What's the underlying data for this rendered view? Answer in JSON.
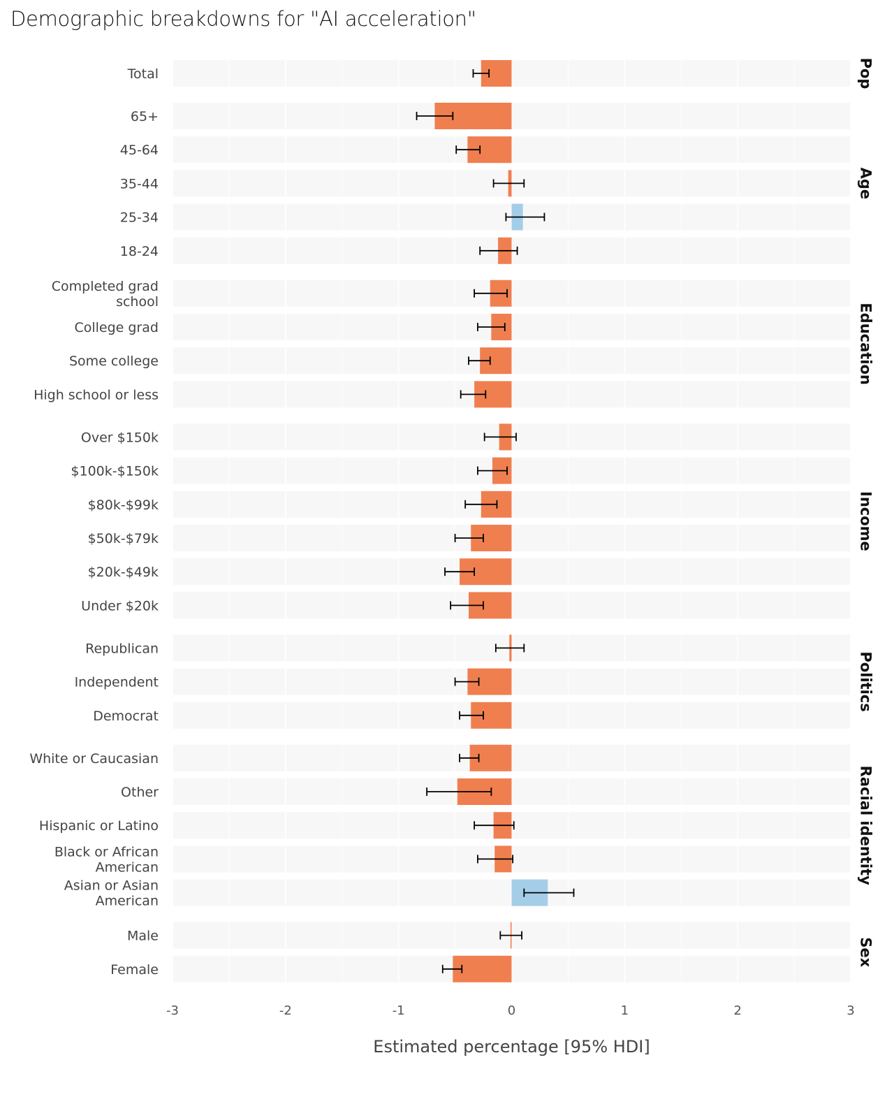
{
  "chart_data": {
    "type": "bar",
    "orientation": "horizontal",
    "title": "Demographic breakdowns for \"AI acceleration\"",
    "xlabel": "Estimated percentage [95% HDI]",
    "ylabel": "",
    "xlim": [
      -3,
      3
    ],
    "xticks": [
      "-3",
      "-2",
      "-1",
      "0",
      "1",
      "2",
      "3"
    ],
    "grid": true,
    "colors": {
      "negative": "#F07F4F",
      "positive": "#A4CEE8",
      "panel": "#F7F7F7",
      "grid": "#FFFFFF",
      "errorbar": "#000000"
    },
    "facets": [
      {
        "name": "Pop",
        "rows": [
          {
            "label": [
              "Total"
            ],
            "value": -0.27,
            "lo": -0.34,
            "hi": -0.2
          }
        ]
      },
      {
        "name": "Age",
        "rows": [
          {
            "label": [
              "65+"
            ],
            "value": -0.68,
            "lo": -0.84,
            "hi": -0.52
          },
          {
            "label": [
              "45-64"
            ],
            "value": -0.39,
            "lo": -0.49,
            "hi": -0.28
          },
          {
            "label": [
              "35-44"
            ],
            "value": -0.03,
            "lo": -0.16,
            "hi": 0.11
          },
          {
            "label": [
              "25-34"
            ],
            "value": 0.1,
            "lo": -0.05,
            "hi": 0.29
          },
          {
            "label": [
              "18-24"
            ],
            "value": -0.12,
            "lo": -0.28,
            "hi": 0.05
          }
        ]
      },
      {
        "name": "Education",
        "rows": [
          {
            "label": [
              "Completed grad",
              "school"
            ],
            "value": -0.19,
            "lo": -0.33,
            "hi": -0.04
          },
          {
            "label": [
              "College grad"
            ],
            "value": -0.18,
            "lo": -0.3,
            "hi": -0.06
          },
          {
            "label": [
              "Some college"
            ],
            "value": -0.28,
            "lo": -0.38,
            "hi": -0.19
          },
          {
            "label": [
              "High school or less"
            ],
            "value": -0.33,
            "lo": -0.45,
            "hi": -0.23
          }
        ]
      },
      {
        "name": "Income",
        "rows": [
          {
            "label": [
              "Over $150k"
            ],
            "value": -0.11,
            "lo": -0.24,
            "hi": 0.04
          },
          {
            "label": [
              "$100k-$150k"
            ],
            "value": -0.17,
            "lo": -0.3,
            "hi": -0.04
          },
          {
            "label": [
              "$80k-$99k"
            ],
            "value": -0.27,
            "lo": -0.41,
            "hi": -0.13
          },
          {
            "label": [
              "$50k-$79k"
            ],
            "value": -0.36,
            "lo": -0.5,
            "hi": -0.25
          },
          {
            "label": [
              "$20k-$49k"
            ],
            "value": -0.46,
            "lo": -0.59,
            "hi": -0.33
          },
          {
            "label": [
              "Under $20k"
            ],
            "value": -0.38,
            "lo": -0.54,
            "hi": -0.25
          }
        ]
      },
      {
        "name": "Politics",
        "rows": [
          {
            "label": [
              "Republican"
            ],
            "value": -0.02,
            "lo": -0.14,
            "hi": 0.11
          },
          {
            "label": [
              "Independent"
            ],
            "value": -0.39,
            "lo": -0.5,
            "hi": -0.29
          },
          {
            "label": [
              "Democrat"
            ],
            "value": -0.36,
            "lo": -0.46,
            "hi": -0.25
          }
        ]
      },
      {
        "name": "Racial identity",
        "rows": [
          {
            "label": [
              "White or Caucasian"
            ],
            "value": -0.37,
            "lo": -0.46,
            "hi": -0.29
          },
          {
            "label": [
              "Other"
            ],
            "value": -0.48,
            "lo": -0.75,
            "hi": -0.18
          },
          {
            "label": [
              "Hispanic or Latino"
            ],
            "value": -0.16,
            "lo": -0.33,
            "hi": 0.02
          },
          {
            "label": [
              "Black or African",
              "American"
            ],
            "value": -0.15,
            "lo": -0.3,
            "hi": 0.01
          },
          {
            "label": [
              "Asian or Asian",
              "American"
            ],
            "value": 0.32,
            "lo": 0.11,
            "hi": 0.55
          }
        ]
      },
      {
        "name": "Sex",
        "rows": [
          {
            "label": [
              "Male"
            ],
            "value": -0.01,
            "lo": -0.1,
            "hi": 0.09
          },
          {
            "label": [
              "Female"
            ],
            "value": -0.52,
            "lo": -0.61,
            "hi": -0.44
          }
        ]
      }
    ]
  }
}
